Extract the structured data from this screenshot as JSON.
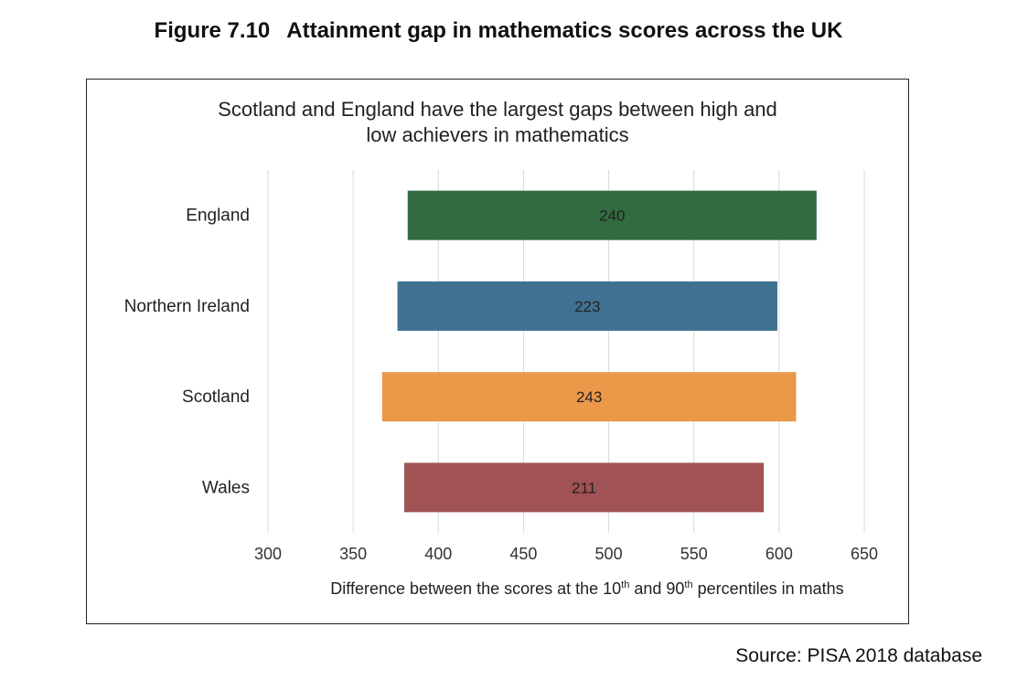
{
  "figure": {
    "number": "Figure 7.10",
    "title": "Attainment gap in mathematics scores across the UK"
  },
  "chart_data": {
    "type": "bar",
    "subtype": "floating-horizontal-bar",
    "title_lines": [
      "Scotland and England have the largest gaps between high and",
      "low achievers in mathematics"
    ],
    "xlabel": "Difference between the scores at the 10th and 90th percentiles in maths",
    "xlabel_parts": [
      "Difference between the scores at the 10",
      "th",
      " and 90",
      "th",
      " percentiles in maths"
    ],
    "xlim": [
      300,
      650
    ],
    "xticks": [
      "300",
      "350",
      "400",
      "450",
      "500",
      "550",
      "600",
      "650"
    ],
    "grid": "vertical",
    "categories": [
      "England",
      "Northern Ireland",
      "Scotland",
      "Wales"
    ],
    "series": [
      {
        "low": [
          382,
          376,
          367,
          380
        ],
        "high": [
          622,
          599,
          610,
          591
        ],
        "labels": [
          "240",
          "223",
          "243",
          "211"
        ],
        "colors": [
          "#336b41",
          "#3f7193",
          "#ec9849",
          "#a05254"
        ]
      }
    ]
  },
  "source": "Source: PISA 2018 database"
}
